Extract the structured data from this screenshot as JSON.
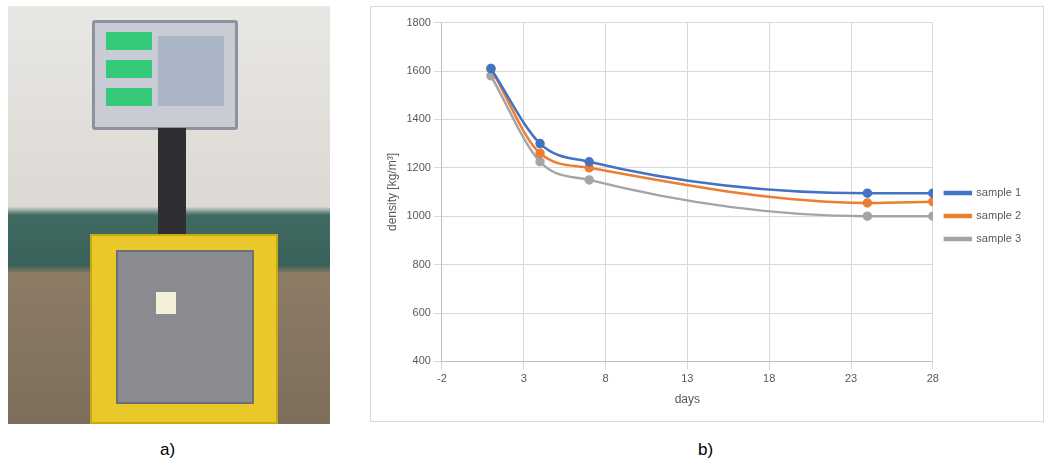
{
  "panel_labels": [
    "a)",
    "b)"
  ],
  "chart_data": {
    "type": "line",
    "x_label": "days",
    "y_label": "density [kg/m³]",
    "x": [
      1,
      4,
      7,
      24,
      28
    ],
    "series": [
      {
        "name": "sample 1",
        "color": "#4472c4",
        "values": [
          1610,
          1300,
          1225,
          1095,
          1095
        ]
      },
      {
        "name": "sample 2",
        "color": "#ed7d31",
        "values": [
          1610,
          1260,
          1200,
          1055,
          1060
        ]
      },
      {
        "name": "sample 3",
        "color": "#a5a5a5",
        "values": [
          1580,
          1225,
          1150,
          1000,
          1000
        ]
      }
    ],
    "xlim": [
      -2,
      28
    ],
    "xticks": [
      -2,
      3,
      8,
      13,
      18,
      23,
      28
    ],
    "ylim": [
      400,
      1800
    ],
    "yticks": [
      400,
      600,
      800,
      1000,
      1200,
      1400,
      1600,
      1800
    ],
    "grid": true,
    "legend": "right",
    "marker": "circle"
  }
}
